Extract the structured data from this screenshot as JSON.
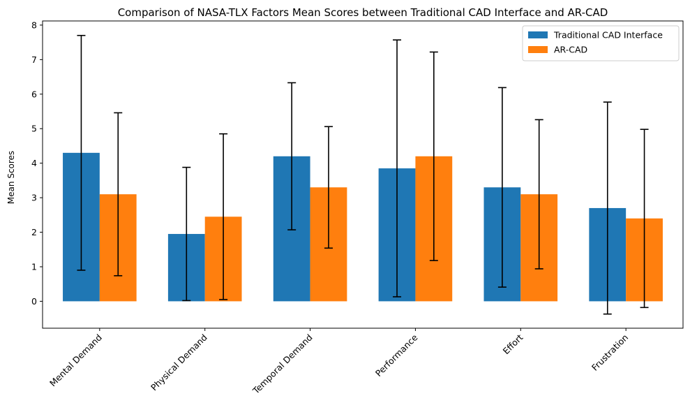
{
  "chart_data": {
    "type": "bar",
    "title": "Comparison of NASA-TLX Factors Mean Scores between Traditional CAD Interface and AR-CAD",
    "xlabel": "",
    "ylabel": "Mean Scores",
    "categories": [
      "Mental Demand",
      "Physical Demand",
      "Temporal Demand",
      "Performance",
      "Effort",
      "Frustration"
    ],
    "series": [
      {
        "name": "Traditional CAD Interface",
        "color": "#1f77b4",
        "values": [
          4.3,
          1.95,
          4.2,
          3.85,
          3.3,
          2.7
        ],
        "errors": [
          3.4,
          1.93,
          2.13,
          3.72,
          2.89,
          3.07
        ]
      },
      {
        "name": "AR-CAD",
        "color": "#ff7f0e",
        "values": [
          3.1,
          2.45,
          3.3,
          4.2,
          3.1,
          2.4
        ],
        "errors": [
          2.36,
          2.4,
          1.76,
          3.02,
          2.16,
          2.58
        ]
      }
    ],
    "ylim": [
      -0.78,
      8.12
    ],
    "yticks": [
      0,
      1,
      2,
      3,
      4,
      5,
      6,
      7,
      8
    ],
    "grid": false,
    "legend_position": "top-right"
  }
}
